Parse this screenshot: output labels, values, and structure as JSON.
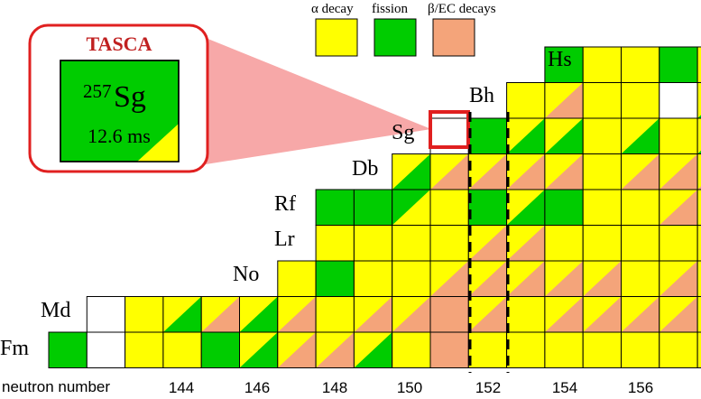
{
  "colors": {
    "alpha": "#ffff00",
    "fission": "#00cc00",
    "beta": "#f4a47a",
    "empty": "#ffffff",
    "highlight": "#e02020",
    "callout": "#f7a8a8"
  },
  "legend": [
    {
      "label": "α decay",
      "color": "#ffff00"
    },
    {
      "label": "fission",
      "color": "#00cc00"
    },
    {
      "label": "β/EC decays",
      "color": "#f4a47a"
    }
  ],
  "callout": {
    "title": "TASCA",
    "mass_number": "257",
    "element": "Sg",
    "half_life": "12.6 ms"
  },
  "x_axis": {
    "title": "neutron number",
    "ticks": [
      "144",
      "146",
      "148",
      "150",
      "152",
      "154",
      "156"
    ]
  },
  "elements": [
    {
      "label": "Fm"
    },
    {
      "label": "Md"
    },
    {
      "label": "No"
    },
    {
      "label": "Lr"
    },
    {
      "label": "Rf"
    },
    {
      "label": "Db"
    },
    {
      "label": "Sg"
    },
    {
      "label": "Bh"
    },
    {
      "label": "Hs"
    }
  ],
  "grid": {
    "rows": [
      {
        "element": "Fm",
        "cells": [
          "G",
          "W",
          "Y",
          "Y",
          "G",
          "YG",
          "YB",
          "YB",
          "YG",
          "Y",
          "B",
          "Y",
          "Y",
          "Y",
          "Y",
          "Y",
          "Y",
          "Y"
        ]
      },
      {
        "element": "Md",
        "cells": [
          "",
          "W",
          "Y",
          "YG",
          "YB",
          "YG",
          "YB",
          "Y",
          "YB",
          "YB",
          "B",
          "YB",
          "Y",
          "YB",
          "YB",
          "YB",
          "YB",
          "Y"
        ]
      },
      {
        "element": "No",
        "cells": [
          "",
          "",
          "",
          "",
          "",
          "",
          "Y",
          "G",
          "Y",
          "Y",
          "YB",
          "YB",
          "YB",
          "YB",
          "YB",
          "Y",
          "YB",
          "Y"
        ]
      },
      {
        "element": "Lr",
        "cells": [
          "",
          "",
          "",
          "",
          "",
          "",
          "",
          "Y",
          "Y",
          "Y",
          "Y",
          "YB",
          "YB",
          "Y",
          "Y",
          "Y",
          "Y",
          "Y"
        ]
      },
      {
        "element": "Rf",
        "cells": [
          "",
          "",
          "",
          "",
          "",
          "",
          "",
          "G",
          "G",
          "GY",
          "Y",
          "G",
          "YG",
          "G",
          "Y",
          "Y",
          "YB",
          "Y"
        ]
      },
      {
        "element": "Db",
        "cells": [
          "",
          "",
          "",
          "",
          "",
          "",
          "",
          "",
          "",
          "YG",
          "YB",
          "YB",
          "YB",
          "YB",
          "Y",
          "YB",
          "YB",
          "YB"
        ]
      },
      {
        "element": "Sg",
        "cells": [
          "",
          "",
          "",
          "",
          "",
          "",
          "",
          "",
          "",
          "",
          "W",
          "G",
          "YG",
          "YG",
          "Y",
          "YG",
          "Y",
          "YG"
        ]
      },
      {
        "element": "Bh",
        "cells": [
          "",
          "",
          "",
          "",
          "",
          "",
          "",
          "",
          "",
          "",
          "",
          "",
          "Y",
          "YB",
          "Y",
          "Y",
          "W",
          "YG"
        ]
      },
      {
        "element": "Hs",
        "cells": [
          "",
          "",
          "",
          "",
          "",
          "",
          "",
          "",
          "",
          "",
          "",
          "",
          "",
          "G",
          "Y",
          "Y",
          "G",
          "Y"
        ]
      }
    ]
  }
}
